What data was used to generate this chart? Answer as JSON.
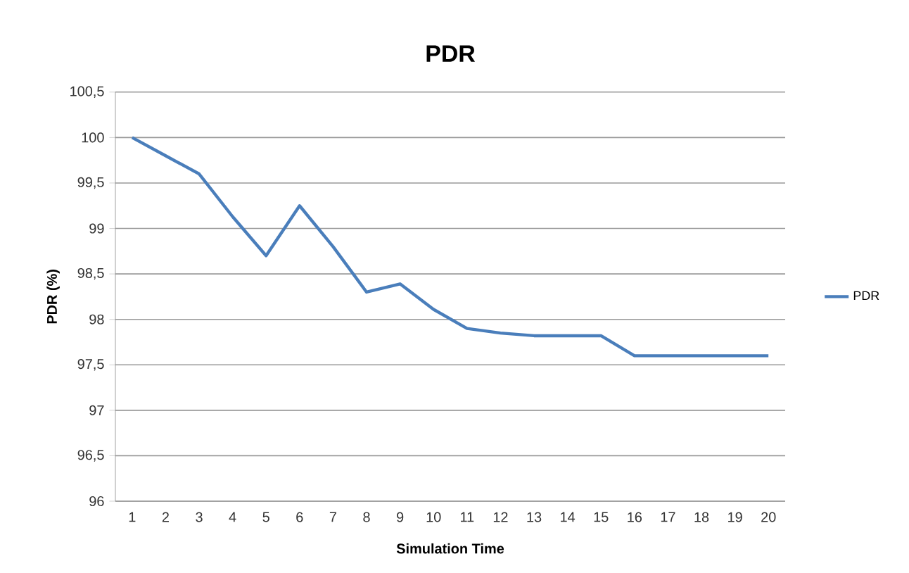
{
  "chart_data": {
    "type": "line",
    "title": "PDR",
    "xlabel": "Simulation Time",
    "ylabel": "PDR (%)",
    "categories": [
      "1",
      "2",
      "3",
      "4",
      "5",
      "6",
      "7",
      "8",
      "9",
      "10",
      "11",
      "12",
      "13",
      "14",
      "15",
      "16",
      "17",
      "18",
      "19",
      "20"
    ],
    "series": [
      {
        "name": "PDR",
        "color": "#4a7ebb",
        "values": [
          100,
          99.8,
          99.6,
          99.13,
          98.7,
          99.25,
          98.8,
          98.3,
          98.39,
          98.11,
          97.9,
          97.85,
          97.82,
          97.82,
          97.82,
          97.6,
          97.6,
          97.6,
          97.6,
          97.6
        ]
      }
    ],
    "ylim": [
      96,
      100.5
    ],
    "yticks": [
      {
        "value": 96,
        "label": "96"
      },
      {
        "value": 96.5,
        "label": "96,5"
      },
      {
        "value": 97,
        "label": "97"
      },
      {
        "value": 97.5,
        "label": "97,5"
      },
      {
        "value": 98,
        "label": "98"
      },
      {
        "value": 98.5,
        "label": "98,5"
      },
      {
        "value": 99,
        "label": "99"
      },
      {
        "value": 99.5,
        "label": "99,5"
      },
      {
        "value": 100,
        "label": "100"
      },
      {
        "value": 100.5,
        "label": "100,5"
      }
    ],
    "grid": "y",
    "legend": "right",
    "marker": "none",
    "line_style": "solid"
  }
}
